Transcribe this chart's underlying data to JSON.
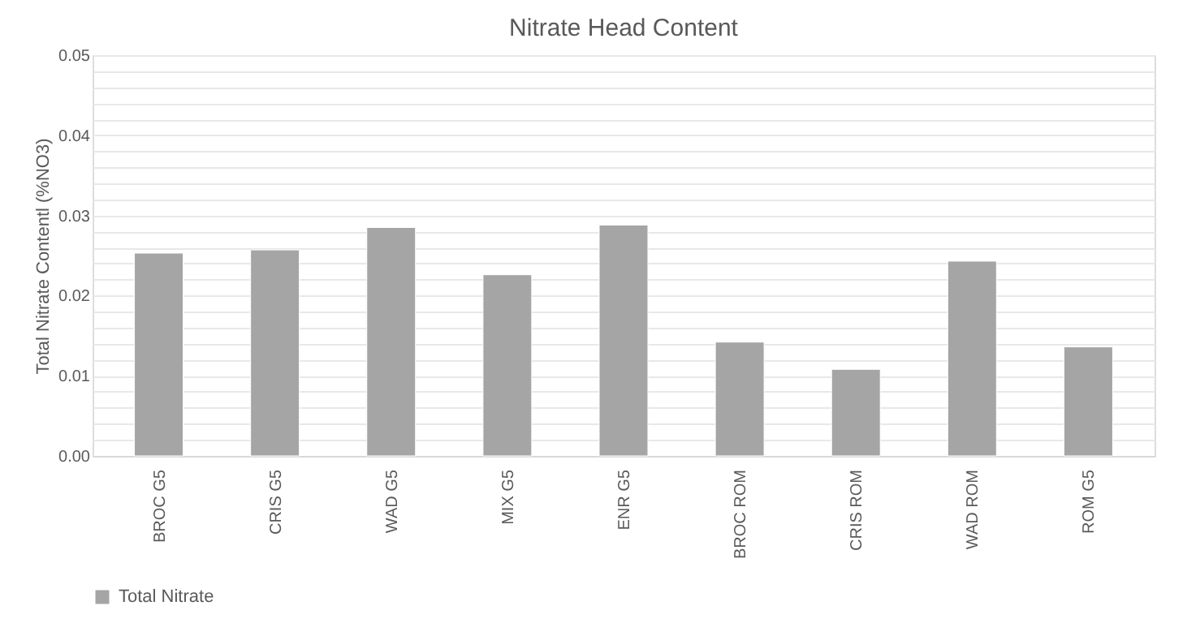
{
  "chart_data": {
    "type": "bar",
    "title": "Nitrate Head Content",
    "ylabel": "Total Nitrate Contentl (%NO3)",
    "categories": [
      "BROC G5",
      "CRIS G5",
      "WAD G5",
      "MIX G5",
      "ENR G5",
      "BROC ROM",
      "CRIS ROM",
      "WAD ROM",
      "ROM G5"
    ],
    "series": [
      {
        "name": "Total Nitrate",
        "color": "#a5a5a5",
        "values": [
          0.0253,
          0.0257,
          0.0285,
          0.0226,
          0.0288,
          0.0142,
          0.0108,
          0.0243,
          0.0136
        ]
      }
    ],
    "ylim": [
      0,
      0.05
    ],
    "yticks": [
      {
        "value": 0,
        "label": "0.00"
      },
      {
        "value": 0.002,
        "label": null
      },
      {
        "value": 0.004,
        "label": null
      },
      {
        "value": 0.006,
        "label": null
      },
      {
        "value": 0.008,
        "label": null
      },
      {
        "value": 0.01,
        "label": "0.01"
      },
      {
        "value": 0.012,
        "label": null
      },
      {
        "value": 0.014,
        "label": null
      },
      {
        "value": 0.016,
        "label": null
      },
      {
        "value": 0.018,
        "label": null
      },
      {
        "value": 0.02,
        "label": "0.02"
      },
      {
        "value": 0.022,
        "label": null
      },
      {
        "value": 0.024,
        "label": null
      },
      {
        "value": 0.026,
        "label": null
      },
      {
        "value": 0.028,
        "label": null
      },
      {
        "value": 0.03,
        "label": "0.03"
      },
      {
        "value": 0.032,
        "label": null
      },
      {
        "value": 0.034,
        "label": null
      },
      {
        "value": 0.036,
        "label": null
      },
      {
        "value": 0.038,
        "label": null
      },
      {
        "value": 0.04,
        "label": "0.04"
      },
      {
        "value": 0.042,
        "label": null
      },
      {
        "value": 0.044,
        "label": null
      },
      {
        "value": 0.046,
        "label": null
      },
      {
        "value": 0.048,
        "label": null
      },
      {
        "value": 0.05,
        "label": "0.05"
      }
    ],
    "grid": true,
    "legend": "bottom"
  }
}
